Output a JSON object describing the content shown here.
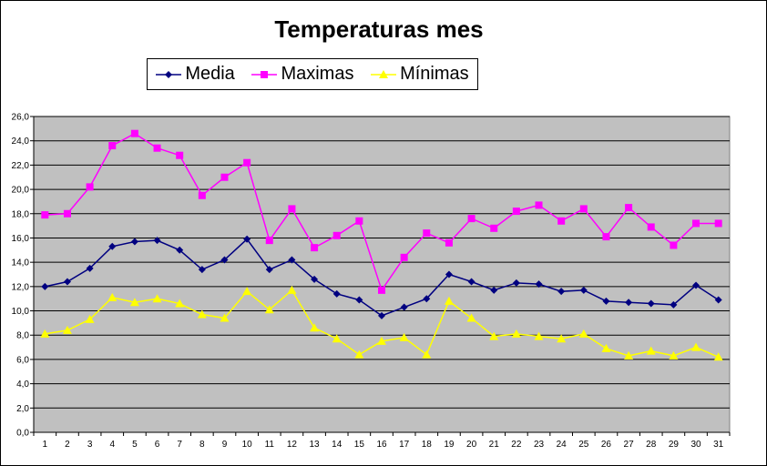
{
  "chart_data": {
    "type": "line",
    "title": "Temperaturas mes",
    "xlabel": "",
    "ylabel": "",
    "ylim": [
      0,
      26
    ],
    "ytick_step": 2,
    "grid": true,
    "legend_position": "top",
    "plot_bg": "#c0c0c0",
    "categories": [
      "1",
      "2",
      "3",
      "4",
      "5",
      "6",
      "7",
      "8",
      "9",
      "10",
      "11",
      "12",
      "13",
      "14",
      "15",
      "16",
      "17",
      "18",
      "19",
      "20",
      "21",
      "22",
      "23",
      "24",
      "25",
      "26",
      "27",
      "28",
      "29",
      "30",
      "31"
    ],
    "series": [
      {
        "name": "Media",
        "color": "#000080",
        "marker": "diamond",
        "values": [
          12.0,
          12.4,
          13.5,
          15.3,
          15.7,
          15.8,
          15.0,
          13.4,
          14.2,
          15.9,
          13.4,
          14.2,
          12.6,
          11.4,
          10.9,
          9.6,
          10.3,
          11.0,
          13.0,
          12.4,
          11.7,
          12.3,
          12.2,
          11.6,
          11.7,
          10.8,
          10.7,
          10.6,
          10.5,
          12.1,
          10.9
        ]
      },
      {
        "name": "Maximas",
        "color": "#ff00ff",
        "marker": "square",
        "values": [
          17.9,
          18.0,
          20.2,
          23.6,
          24.6,
          23.4,
          22.8,
          19.5,
          21.0,
          22.2,
          15.8,
          18.4,
          15.2,
          16.2,
          17.4,
          11.7,
          14.4,
          16.4,
          15.6,
          17.6,
          16.8,
          18.2,
          18.7,
          17.4,
          18.4,
          16.1,
          18.5,
          16.9,
          15.4,
          17.2,
          17.2
        ]
      },
      {
        "name": "Mínimas",
        "color": "#ffff00",
        "marker": "triangle",
        "values": [
          8.1,
          8.4,
          9.3,
          11.1,
          10.7,
          11.0,
          10.6,
          9.7,
          9.4,
          11.6,
          10.1,
          11.7,
          8.6,
          7.7,
          6.4,
          7.5,
          7.8,
          6.4,
          10.8,
          9.4,
          7.9,
          8.1,
          7.9,
          7.7,
          8.1,
          6.9,
          6.3,
          6.7,
          6.3,
          7.0,
          6.2
        ]
      }
    ]
  }
}
